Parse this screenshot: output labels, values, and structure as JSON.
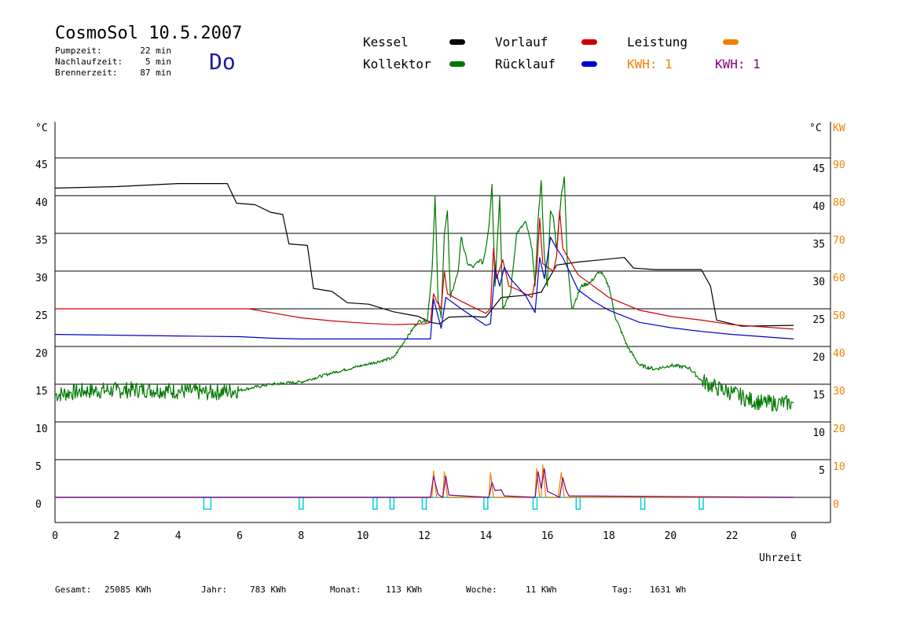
{
  "header": {
    "title": "CosmoSol 10.5.2007",
    "day": "Do",
    "stats": [
      {
        "label": "Pumpzeit:",
        "value": "22 min"
      },
      {
        "label": "Nachlaufzeit:",
        "value": "5 min"
      },
      {
        "label": "Brennerzeit:",
        "value": "87 min"
      }
    ]
  },
  "legend": {
    "kessel": "Kessel",
    "kollektor": "Kollektor",
    "vorlauf": "Vorlauf",
    "ruecklauf": "Rücklauf",
    "leistung": "Leistung",
    "kwh_orange": "KWH: 1",
    "kwh_purple": "KWH: 1"
  },
  "colors": {
    "kessel": "#000000",
    "kollektor": "#007800",
    "vorlauf": "#d00000",
    "ruecklauf": "#0000c8",
    "leistung": "#f08000",
    "kwh_purple": "#800080",
    "pump": "#00d0e0",
    "day": "#1a1aa8"
  },
  "footer": {
    "gesamt_label": "Gesamt:",
    "gesamt": "25085 KWh",
    "jahr_label": "Jahr:",
    "jahr": "783 KWh",
    "monat_label": "Monat:",
    "monat": "113 KWh",
    "woche_label": "Woche:",
    "woche": "11 KWh",
    "tag_label": "Tag:",
    "tag": "1631 Wh"
  },
  "chart_data": {
    "type": "line",
    "xlabel": "Uhrzeit",
    "ylabel_left": "°C",
    "ylabel_right_1": "°C",
    "ylabel_right_2": "KW",
    "x_ticks": [
      "0",
      "2",
      "4",
      "6",
      "8",
      "10",
      "12",
      "14",
      "16",
      "18",
      "20",
      "22",
      "0"
    ],
    "y_ticks_left": [
      "45",
      "40",
      "35",
      "30",
      "25",
      "20",
      "15",
      "10",
      "5",
      "0"
    ],
    "y_ticks_right": [
      "45",
      "40",
      "35",
      "30",
      "25",
      "20",
      "15",
      "10",
      "5"
    ],
    "y_ticks_kw": [
      "90",
      "80",
      "70",
      "60",
      "50",
      "40",
      "30",
      "20",
      "10",
      "0"
    ],
    "xlim": [
      0,
      24
    ],
    "ylim": [
      -3,
      50
    ],
    "grid": true,
    "series": [
      {
        "name": "Kessel",
        "color": "#000000",
        "points": [
          [
            0,
            41
          ],
          [
            2,
            41.2
          ],
          [
            4,
            41.6
          ],
          [
            5.6,
            41.6
          ],
          [
            5.9,
            39
          ],
          [
            6.5,
            38.8
          ],
          [
            7.0,
            37.8
          ],
          [
            7.4,
            37.5
          ],
          [
            7.6,
            33.6
          ],
          [
            8.2,
            33.4
          ],
          [
            8.4,
            27.7
          ],
          [
            9.0,
            27.3
          ],
          [
            9.5,
            25.8
          ],
          [
            10.2,
            25.6
          ],
          [
            11.0,
            24.6
          ],
          [
            11.8,
            24
          ],
          [
            12.2,
            23.2
          ],
          [
            12.5,
            23.0
          ],
          [
            12.8,
            23.9
          ],
          [
            13.5,
            24
          ],
          [
            14.0,
            23.9
          ],
          [
            14.5,
            26.5
          ],
          [
            15.3,
            26.8
          ],
          [
            15.8,
            27.2
          ],
          [
            16.3,
            30.8
          ],
          [
            17.0,
            31.2
          ],
          [
            18.5,
            31.8
          ],
          [
            18.8,
            30.4
          ],
          [
            19.5,
            30.2
          ],
          [
            21.0,
            30.2
          ],
          [
            21.3,
            28
          ],
          [
            21.5,
            23.5
          ],
          [
            22.3,
            22.7
          ],
          [
            24,
            22.8
          ]
        ]
      },
      {
        "name": "Kollektor",
        "color": "#007800",
        "points": [
          [
            0,
            13.6
          ],
          [
            0.5,
            13.9
          ],
          [
            1,
            14.1
          ],
          [
            2,
            14.2
          ],
          [
            3,
            14.3
          ],
          [
            4,
            14.1
          ],
          [
            5,
            13.9
          ],
          [
            6,
            14.2
          ],
          [
            7,
            15.0
          ],
          [
            8,
            15.3
          ],
          [
            9,
            16.5
          ],
          [
            10,
            17.5
          ],
          [
            11,
            18.5
          ],
          [
            11.4,
            21.0
          ],
          [
            11.8,
            23.3
          ],
          [
            12.1,
            23.5
          ],
          [
            12.25,
            30
          ],
          [
            12.35,
            40
          ],
          [
            12.45,
            26
          ],
          [
            12.55,
            23.8
          ],
          [
            12.65,
            35
          ],
          [
            12.75,
            38
          ],
          [
            12.85,
            26.5
          ],
          [
            13.1,
            30
          ],
          [
            13.2,
            34.5
          ],
          [
            13.4,
            31
          ],
          [
            13.6,
            30.5
          ],
          [
            13.8,
            31.5
          ],
          [
            13.9,
            31
          ],
          [
            14.0,
            33
          ],
          [
            14.1,
            36
          ],
          [
            14.2,
            41.5
          ],
          [
            14.3,
            28
          ],
          [
            14.45,
            40
          ],
          [
            14.55,
            25
          ],
          [
            14.8,
            27
          ],
          [
            15.0,
            35
          ],
          [
            15.3,
            36.5
          ],
          [
            15.5,
            33
          ],
          [
            15.6,
            28
          ],
          [
            15.7,
            37
          ],
          [
            15.8,
            42
          ],
          [
            15.9,
            32
          ],
          [
            16.0,
            28
          ],
          [
            16.1,
            38
          ],
          [
            16.2,
            37
          ],
          [
            16.3,
            33
          ],
          [
            16.45,
            40
          ],
          [
            16.55,
            42.5
          ],
          [
            16.65,
            31
          ],
          [
            16.8,
            25
          ],
          [
            17.1,
            28
          ],
          [
            17.4,
            28.5
          ],
          [
            17.7,
            30
          ],
          [
            17.8,
            29.5
          ],
          [
            18.0,
            28
          ],
          [
            18.2,
            24
          ],
          [
            18.6,
            20
          ],
          [
            19.0,
            17.5
          ],
          [
            19.5,
            17.0
          ],
          [
            20.0,
            17.5
          ],
          [
            20.6,
            17.2
          ],
          [
            21.0,
            15.5
          ],
          [
            21.5,
            14.5
          ],
          [
            22.0,
            13.9
          ],
          [
            22.5,
            13.0
          ],
          [
            23.0,
            12.5
          ],
          [
            23.5,
            12.5
          ],
          [
            24,
            12.5
          ]
        ]
      },
      {
        "name": "Vorlauf",
        "color": "#d00000",
        "points": [
          [
            0,
            25
          ],
          [
            2,
            25
          ],
          [
            4,
            25
          ],
          [
            6.3,
            25
          ],
          [
            7,
            24.5
          ],
          [
            8,
            23.8
          ],
          [
            9,
            23.4
          ],
          [
            10,
            23.1
          ],
          [
            11,
            22.9
          ],
          [
            12,
            23
          ],
          [
            12.2,
            23.2
          ],
          [
            12.3,
            27
          ],
          [
            12.4,
            26
          ],
          [
            12.55,
            25.0
          ],
          [
            12.65,
            30
          ],
          [
            12.75,
            27
          ],
          [
            13.2,
            26
          ],
          [
            14.0,
            24.4
          ],
          [
            14.15,
            25
          ],
          [
            14.25,
            33
          ],
          [
            14.35,
            29
          ],
          [
            14.55,
            31.5
          ],
          [
            14.75,
            28
          ],
          [
            15.0,
            27.6
          ],
          [
            15.5,
            26.5
          ],
          [
            15.65,
            30
          ],
          [
            15.75,
            37
          ],
          [
            15.85,
            31
          ],
          [
            16.0,
            30.5
          ],
          [
            16.2,
            30
          ],
          [
            16.3,
            32
          ],
          [
            16.4,
            38
          ],
          [
            16.5,
            33
          ],
          [
            17.0,
            29.5
          ],
          [
            17.5,
            28
          ],
          [
            18,
            26.5
          ],
          [
            19,
            24.8
          ],
          [
            20,
            24.0
          ],
          [
            21,
            23.5
          ],
          [
            22,
            22.9
          ],
          [
            24,
            22.3
          ]
        ]
      },
      {
        "name": "Rücklauf",
        "color": "#0000c8",
        "points": [
          [
            0,
            21.6
          ],
          [
            2,
            21.5
          ],
          [
            4,
            21.4
          ],
          [
            6,
            21.3
          ],
          [
            7,
            21.1
          ],
          [
            8,
            21.0
          ],
          [
            9,
            21.0
          ],
          [
            10,
            21
          ],
          [
            11,
            21
          ],
          [
            12.0,
            21
          ],
          [
            12.2,
            21
          ],
          [
            12.3,
            26.3
          ],
          [
            12.45,
            24
          ],
          [
            12.55,
            22.4
          ],
          [
            12.7,
            26.5
          ],
          [
            13.2,
            25
          ],
          [
            14.0,
            22.8
          ],
          [
            14.15,
            23
          ],
          [
            14.3,
            30.3
          ],
          [
            14.45,
            28
          ],
          [
            14.6,
            30.5
          ],
          [
            14.8,
            29
          ],
          [
            15.3,
            26.7
          ],
          [
            15.6,
            24.5
          ],
          [
            15.75,
            31.8
          ],
          [
            15.9,
            29
          ],
          [
            16.1,
            34.5
          ],
          [
            16.3,
            33
          ],
          [
            16.5,
            31.8
          ],
          [
            17.0,
            27.5
          ],
          [
            17.5,
            26.0
          ],
          [
            18,
            24.8
          ],
          [
            19,
            23.2
          ],
          [
            20,
            22.5
          ],
          [
            21,
            22
          ],
          [
            22,
            21.6
          ],
          [
            24,
            21
          ]
        ]
      },
      {
        "name": "Leistung",
        "color": "#f08000",
        "points": [
          [
            0,
            0
          ],
          [
            12.25,
            0
          ],
          [
            12.3,
            3.5
          ],
          [
            12.4,
            0
          ],
          [
            12.6,
            0
          ],
          [
            12.65,
            3.4
          ],
          [
            12.75,
            0
          ],
          [
            14.1,
            0
          ],
          [
            14.15,
            3.3
          ],
          [
            14.25,
            0
          ],
          [
            15.6,
            0
          ],
          [
            15.65,
            3.8
          ],
          [
            15.75,
            0
          ],
          [
            15.8,
            0
          ],
          [
            15.85,
            4.3
          ],
          [
            15.95,
            0
          ],
          [
            16.35,
            0
          ],
          [
            16.45,
            3.3
          ],
          [
            16.55,
            0
          ],
          [
            24,
            0
          ]
        ]
      },
      {
        "name": "KWH",
        "color": "#800080",
        "points": [
          [
            0,
            0
          ],
          [
            12.2,
            0
          ],
          [
            12.3,
            2.8
          ],
          [
            12.45,
            0.4
          ],
          [
            12.6,
            0
          ],
          [
            12.7,
            2.8
          ],
          [
            12.8,
            0.3
          ],
          [
            14.1,
            0
          ],
          [
            14.2,
            2.0
          ],
          [
            14.3,
            0.9
          ],
          [
            14.5,
            1.0
          ],
          [
            14.6,
            0.2
          ],
          [
            15.6,
            0
          ],
          [
            15.7,
            3.4
          ],
          [
            15.8,
            1.2
          ],
          [
            15.9,
            3.8
          ],
          [
            16.0,
            0.8
          ],
          [
            16.4,
            0
          ],
          [
            16.5,
            2.6
          ],
          [
            16.6,
            1.0
          ],
          [
            16.7,
            0.2
          ],
          [
            24,
            0
          ]
        ]
      }
    ],
    "pump_marks": [
      4.95,
      8.0,
      10.4,
      10.95,
      12.0,
      14.0,
      15.6,
      17.0,
      19.1,
      21.0
    ]
  }
}
